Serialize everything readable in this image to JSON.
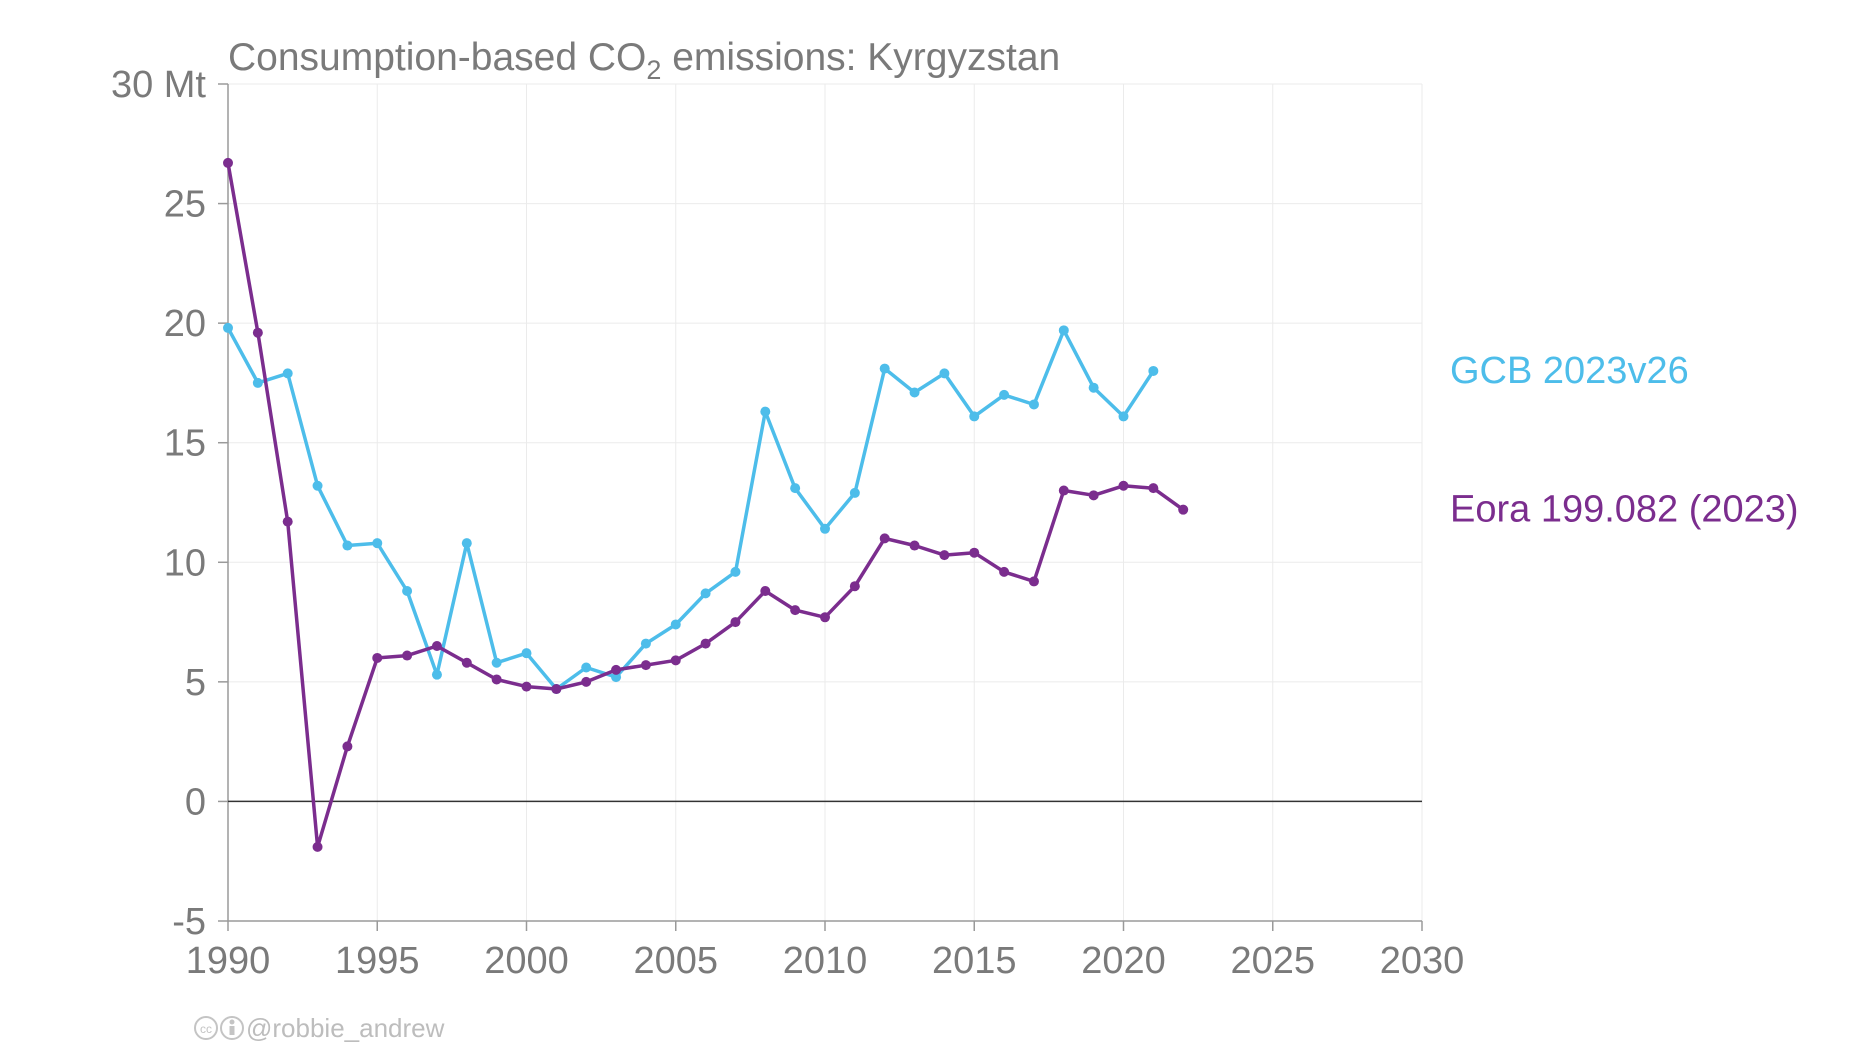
{
  "chart_data": {
    "type": "line",
    "title": "Consumption-based CO₂ emissions: Kyrgyzstan",
    "title_parts": {
      "before": "Consumption-based CO",
      "sub": "2",
      "after": " emissions: Kyrgyzstan"
    },
    "xlabel": "",
    "ylabel": "",
    "xlim": [
      1990,
      2030
    ],
    "ylim": [
      -5,
      30
    ],
    "x_ticks": [
      1990,
      1995,
      2000,
      2005,
      2010,
      2015,
      2020,
      2025,
      2030
    ],
    "y_ticks": [
      -5,
      0,
      5,
      10,
      15,
      20,
      25,
      30
    ],
    "y_tick_labels": [
      "-5",
      "0",
      "5",
      "10",
      "15",
      "20",
      "25",
      "30 Mt"
    ],
    "grid": true,
    "legend_placement": "right",
    "series": [
      {
        "name": "GCB 2023v26",
        "color": "#4dbdea",
        "x": [
          1990,
          1991,
          1992,
          1993,
          1994,
          1995,
          1996,
          1997,
          1998,
          1999,
          2000,
          2001,
          2002,
          2003,
          2004,
          2005,
          2006,
          2007,
          2008,
          2009,
          2010,
          2011,
          2012,
          2013,
          2014,
          2015,
          2016,
          2017,
          2018,
          2019,
          2020,
          2021
        ],
        "values": [
          19.8,
          17.5,
          17.9,
          13.2,
          10.7,
          10.8,
          8.8,
          5.3,
          10.8,
          5.8,
          6.2,
          4.7,
          5.6,
          5.2,
          6.6,
          7.4,
          8.7,
          9.6,
          16.3,
          13.1,
          11.4,
          12.9,
          18.1,
          17.1,
          17.9,
          16.1,
          17.0,
          16.6,
          19.7,
          17.3,
          16.1,
          18.0
        ]
      },
      {
        "name": "Eora 199.082 (2023)",
        "color": "#7b2d8e",
        "x": [
          1990,
          1991,
          1992,
          1993,
          1994,
          1995,
          1996,
          1997,
          1998,
          1999,
          2000,
          2001,
          2002,
          2003,
          2004,
          2005,
          2006,
          2007,
          2008,
          2009,
          2010,
          2011,
          2012,
          2013,
          2014,
          2015,
          2016,
          2017,
          2018,
          2019,
          2020,
          2021,
          2022
        ],
        "values": [
          26.7,
          19.6,
          11.7,
          -1.9,
          2.3,
          6.0,
          6.1,
          6.5,
          5.8,
          5.1,
          4.8,
          4.7,
          5.0,
          5.5,
          5.7,
          5.9,
          6.6,
          7.5,
          8.8,
          8.0,
          7.7,
          9.0,
          11.0,
          10.7,
          10.3,
          10.4,
          9.6,
          9.2,
          13.0,
          12.8,
          13.2,
          13.1,
          12.2
        ]
      }
    ]
  },
  "credit": {
    "handle": "@robbie_andrew",
    "icons": [
      "cc-icon",
      "by-icon"
    ]
  }
}
